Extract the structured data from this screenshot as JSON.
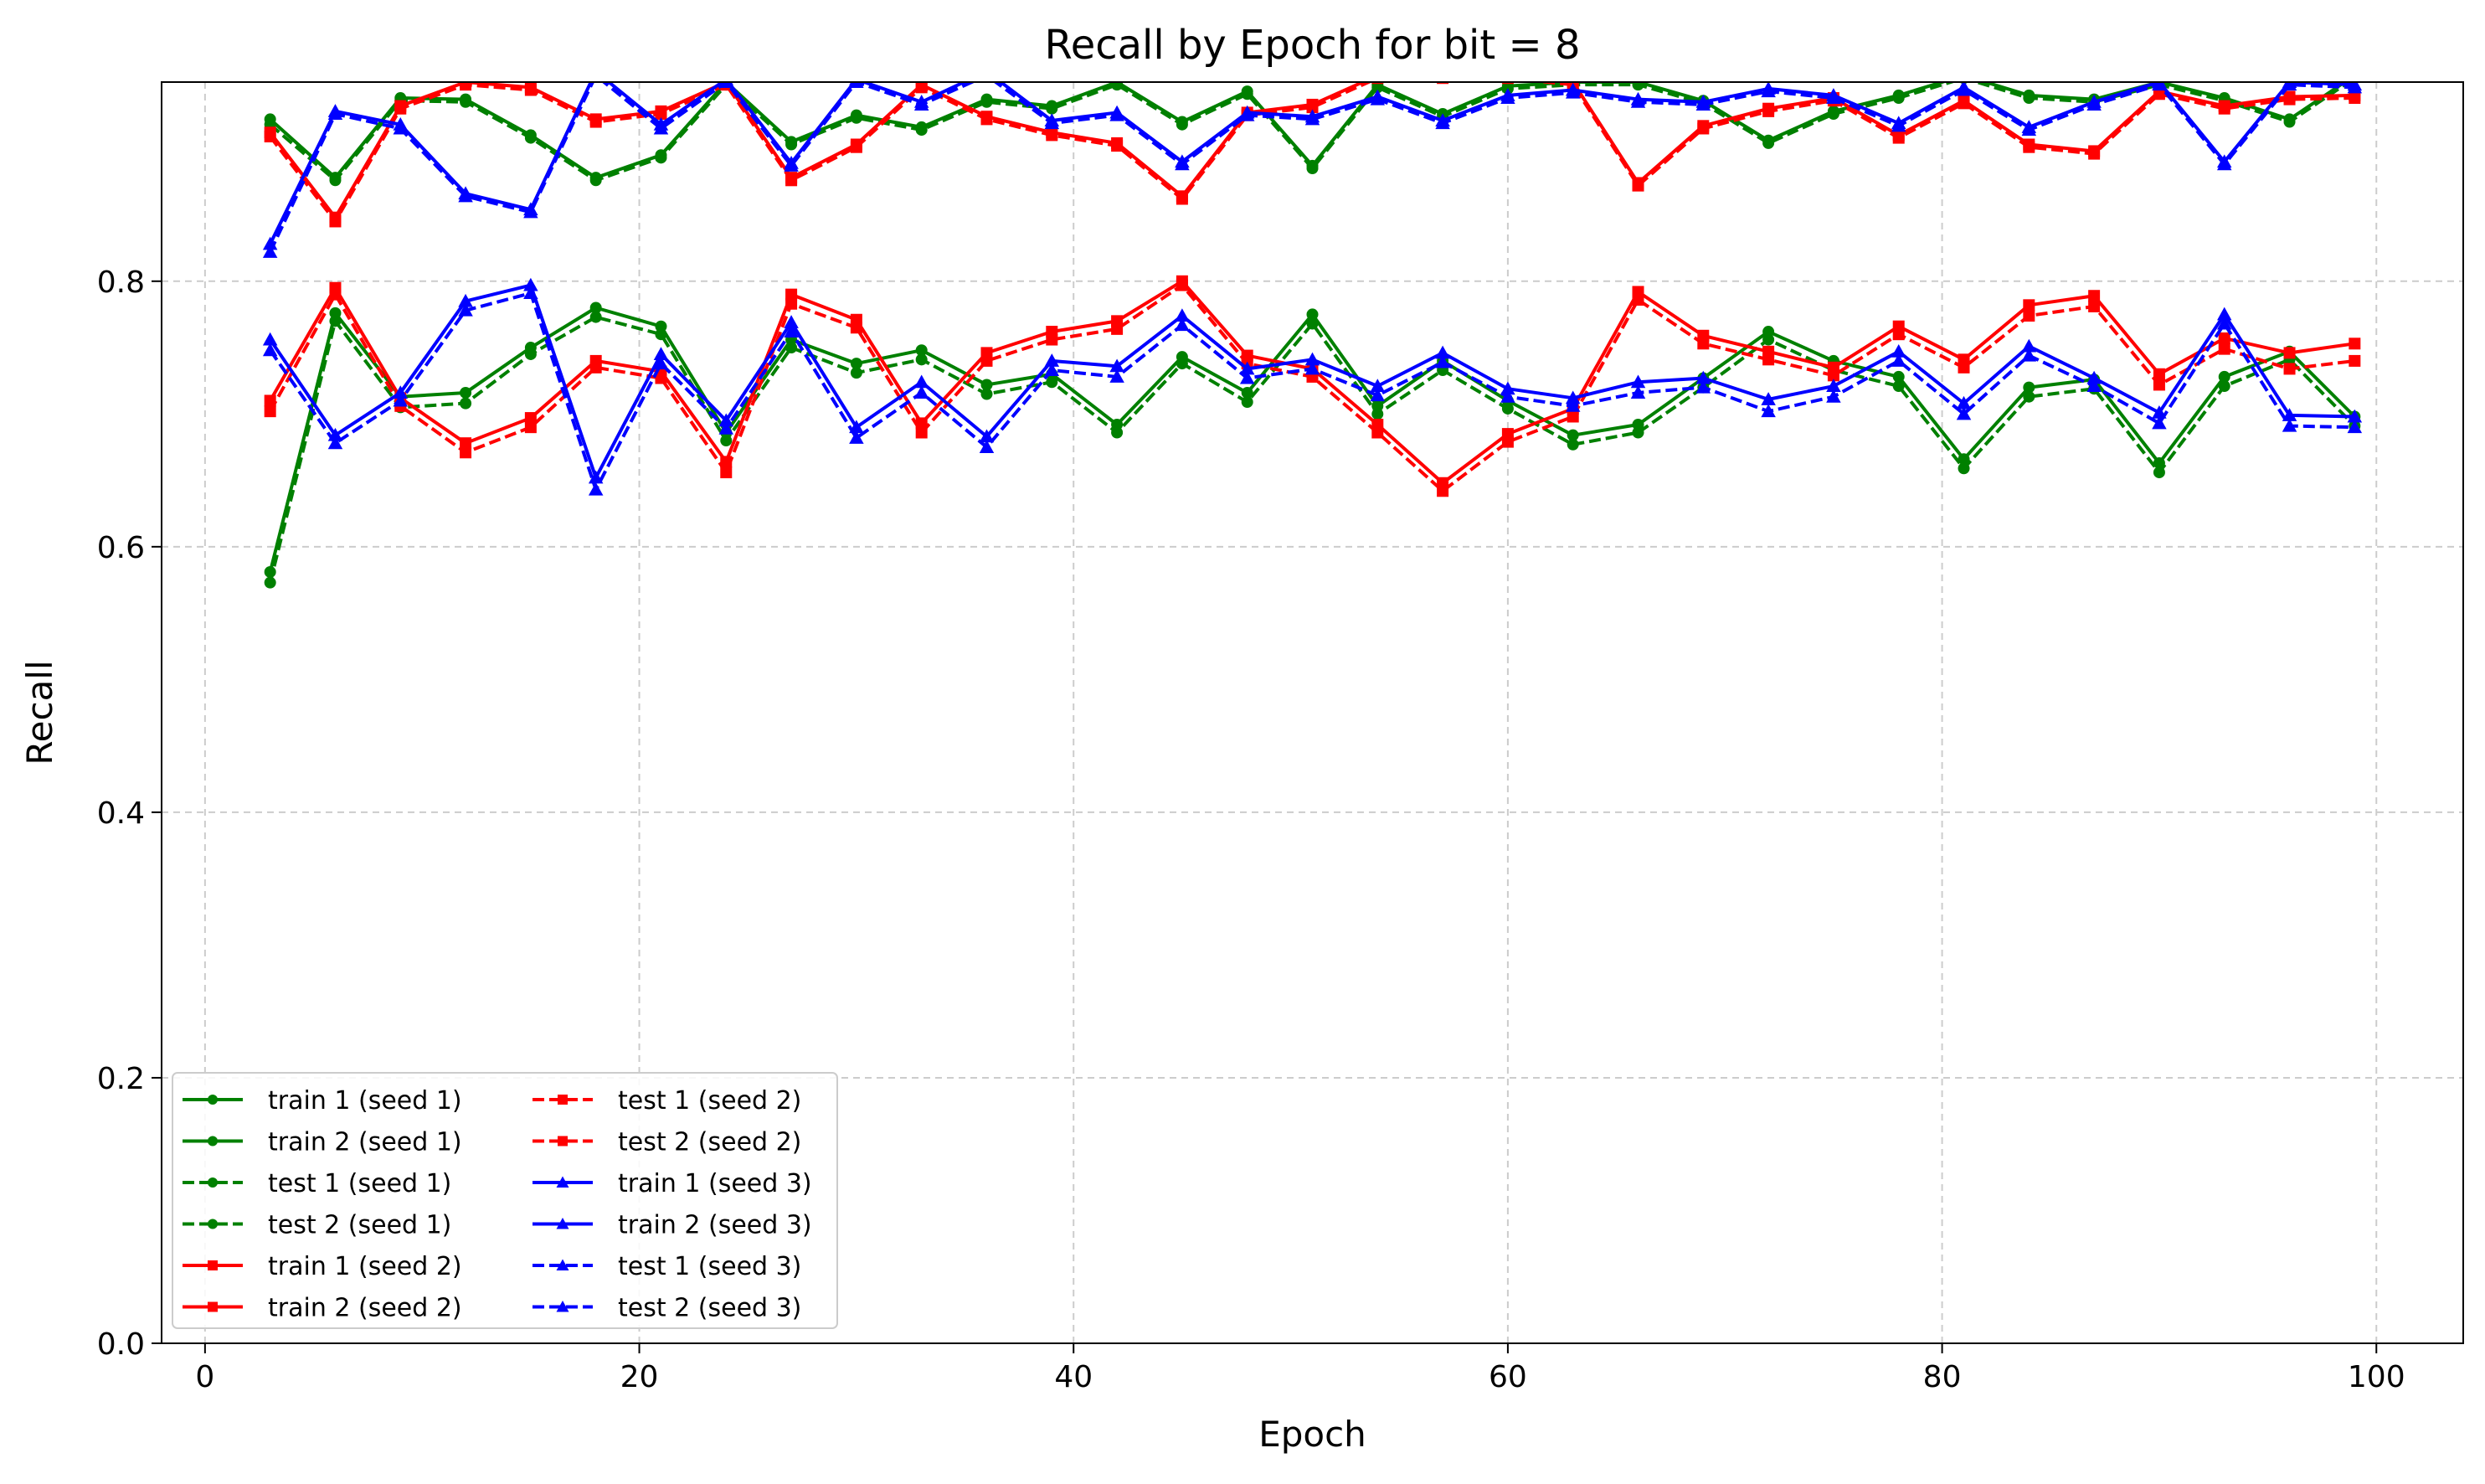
{
  "chart_data": {
    "type": "line",
    "title": "Recall by Epoch for bit = 8",
    "xlabel": "Epoch",
    "ylabel": "Recall",
    "xlim": [
      -2,
      104
    ],
    "ylim": [
      0.0,
      0.95
    ],
    "xticks": [
      0,
      20,
      40,
      60,
      80,
      100
    ],
    "yticks": [
      0.0,
      0.2,
      0.4,
      0.6,
      0.8
    ],
    "xtick_labels": [
      "0",
      "20",
      "40",
      "60",
      "80",
      "100"
    ],
    "ytick_labels": [
      "0.0",
      "0.2",
      "0.4",
      "0.6",
      "0.8"
    ],
    "grid": true,
    "legend": {
      "placement": "lower-left",
      "columns": 2
    },
    "x": [
      3,
      6,
      9,
      12,
      15,
      18,
      21,
      24,
      27,
      30,
      33,
      36,
      39,
      42,
      45,
      48,
      51,
      54,
      57,
      60,
      63,
      66,
      69,
      72,
      75,
      78,
      81,
      84,
      87,
      90,
      93,
      96,
      99
    ],
    "series": [
      {
        "name": "train 1 (seed 1)",
        "color": "#008000",
        "style": "solid",
        "marker": "circle",
        "values": [
          0.922,
          0.878,
          0.938,
          0.937,
          0.91,
          0.878,
          0.895,
          0.95,
          0.905,
          0.925,
          0.916,
          0.937,
          0.932,
          0.95,
          0.92,
          0.943,
          0.887,
          0.948,
          0.926,
          0.947,
          0.95,
          0.95,
          0.936,
          0.906,
          0.928,
          0.94,
          0.955,
          0.94,
          0.937,
          0.95,
          0.938,
          0.922,
          0.955
        ]
      },
      {
        "name": "train 2 (seed 1)",
        "color": "#008000",
        "style": "solid",
        "marker": "circle",
        "values": [
          0.581,
          0.776,
          0.713,
          0.716,
          0.75,
          0.78,
          0.766,
          0.686,
          0.756,
          0.738,
          0.748,
          0.722,
          0.73,
          0.692,
          0.743,
          0.716,
          0.775,
          0.706,
          0.74,
          0.71,
          0.684,
          0.692,
          0.727,
          0.762,
          0.74,
          0.728,
          0.666,
          0.72,
          0.726,
          0.663,
          0.728,
          0.747,
          0.698
        ]
      },
      {
        "name": "test 1 (seed 1)",
        "color": "#008000",
        "style": "dashed",
        "marker": "circle",
        "values": [
          0.918,
          0.876,
          0.936,
          0.935,
          0.908,
          0.876,
          0.893,
          0.948,
          0.903,
          0.923,
          0.914,
          0.935,
          0.93,
          0.948,
          0.918,
          0.941,
          0.885,
          0.946,
          0.924,
          0.945,
          0.948,
          0.948,
          0.934,
          0.904,
          0.926,
          0.938,
          0.953,
          0.938,
          0.935,
          0.948,
          0.936,
          0.92,
          0.953
        ]
      },
      {
        "name": "test 2 (seed 1)",
        "color": "#008000",
        "style": "dashed",
        "marker": "circle",
        "values": [
          0.573,
          0.77,
          0.705,
          0.708,
          0.745,
          0.773,
          0.76,
          0.68,
          0.75,
          0.731,
          0.741,
          0.715,
          0.724,
          0.686,
          0.738,
          0.709,
          0.768,
          0.7,
          0.733,
          0.704,
          0.677,
          0.686,
          0.72,
          0.756,
          0.733,
          0.721,
          0.659,
          0.713,
          0.719,
          0.656,
          0.721,
          0.741,
          0.691
        ]
      },
      {
        "name": "train 1 (seed 2)",
        "color": "#ff0000",
        "style": "solid",
        "marker": "square",
        "values": [
          0.912,
          0.848,
          0.932,
          0.95,
          0.946,
          0.922,
          0.928,
          0.95,
          0.878,
          0.903,
          0.948,
          0.924,
          0.912,
          0.904,
          0.864,
          0.927,
          0.933,
          0.955,
          0.955,
          0.955,
          0.95,
          0.874,
          0.917,
          0.93,
          0.938,
          0.91,
          0.936,
          0.903,
          0.898,
          0.943,
          0.932,
          0.939,
          0.94
        ]
      },
      {
        "name": "train 2 (seed 2)",
        "color": "#ff0000",
        "style": "solid",
        "marker": "square",
        "values": [
          0.71,
          0.795,
          0.712,
          0.678,
          0.697,
          0.74,
          0.732,
          0.664,
          0.79,
          0.771,
          0.693,
          0.746,
          0.762,
          0.77,
          0.8,
          0.744,
          0.734,
          0.692,
          0.648,
          0.685,
          0.704,
          0.792,
          0.759,
          0.747,
          0.735,
          0.766,
          0.741,
          0.782,
          0.789,
          0.73,
          0.757,
          0.746,
          0.753
        ]
      },
      {
        "name": "test 1 (seed 2)",
        "color": "#ff0000",
        "style": "dashed",
        "marker": "square",
        "values": [
          0.909,
          0.845,
          0.93,
          0.948,
          0.944,
          0.92,
          0.926,
          0.948,
          0.876,
          0.901,
          0.946,
          0.922,
          0.91,
          0.902,
          0.862,
          0.925,
          0.931,
          0.953,
          0.953,
          0.953,
          0.948,
          0.872,
          0.915,
          0.928,
          0.936,
          0.908,
          0.934,
          0.901,
          0.896,
          0.941,
          0.93,
          0.937,
          0.938
        ]
      },
      {
        "name": "test 2 (seed 2)",
        "color": "#ff0000",
        "style": "dashed",
        "marker": "square",
        "values": [
          0.702,
          0.79,
          0.706,
          0.671,
          0.69,
          0.735,
          0.727,
          0.656,
          0.783,
          0.765,
          0.686,
          0.74,
          0.756,
          0.764,
          0.797,
          0.738,
          0.728,
          0.686,
          0.642,
          0.679,
          0.698,
          0.786,
          0.753,
          0.741,
          0.729,
          0.76,
          0.735,
          0.774,
          0.781,
          0.722,
          0.749,
          0.734,
          0.74
        ]
      },
      {
        "name": "train 1 (seed 3)",
        "color": "#0000ff",
        "style": "solid",
        "marker": "triangle",
        "values": [
          0.828,
          0.928,
          0.918,
          0.866,
          0.854,
          0.958,
          0.918,
          0.952,
          0.889,
          0.952,
          0.935,
          0.958,
          0.921,
          0.927,
          0.89,
          0.927,
          0.924,
          0.939,
          0.921,
          0.94,
          0.944,
          0.937,
          0.935,
          0.945,
          0.94,
          0.919,
          0.946,
          0.916,
          0.935,
          0.95,
          0.89,
          0.95,
          0.948
        ]
      },
      {
        "name": "train 2 (seed 3)",
        "color": "#0000ff",
        "style": "solid",
        "marker": "triangle",
        "values": [
          0.756,
          0.684,
          0.716,
          0.785,
          0.797,
          0.652,
          0.745,
          0.695,
          0.769,
          0.69,
          0.724,
          0.683,
          0.74,
          0.736,
          0.774,
          0.734,
          0.741,
          0.721,
          0.746,
          0.719,
          0.712,
          0.724,
          0.727,
          0.711,
          0.721,
          0.747,
          0.708,
          0.751,
          0.727,
          0.701,
          0.775,
          0.699,
          0.698
        ]
      },
      {
        "name": "test 1 (seed 3)",
        "color": "#0000ff",
        "style": "dashed",
        "marker": "triangle",
        "values": [
          0.822,
          0.926,
          0.915,
          0.864,
          0.852,
          0.955,
          0.915,
          0.95,
          0.887,
          0.95,
          0.933,
          0.955,
          0.919,
          0.925,
          0.888,
          0.925,
          0.922,
          0.937,
          0.919,
          0.938,
          0.942,
          0.935,
          0.933,
          0.943,
          0.938,
          0.917,
          0.944,
          0.914,
          0.933,
          0.948,
          0.888,
          0.948,
          0.946
        ]
      },
      {
        "name": "test 2 (seed 3)",
        "color": "#0000ff",
        "style": "dashed",
        "marker": "triangle",
        "values": [
          0.748,
          0.678,
          0.71,
          0.778,
          0.791,
          0.643,
          0.738,
          0.689,
          0.762,
          0.682,
          0.716,
          0.675,
          0.733,
          0.728,
          0.767,
          0.727,
          0.734,
          0.714,
          0.739,
          0.713,
          0.706,
          0.716,
          0.72,
          0.702,
          0.713,
          0.74,
          0.7,
          0.744,
          0.721,
          0.693,
          0.768,
          0.691,
          0.69
        ]
      }
    ]
  }
}
